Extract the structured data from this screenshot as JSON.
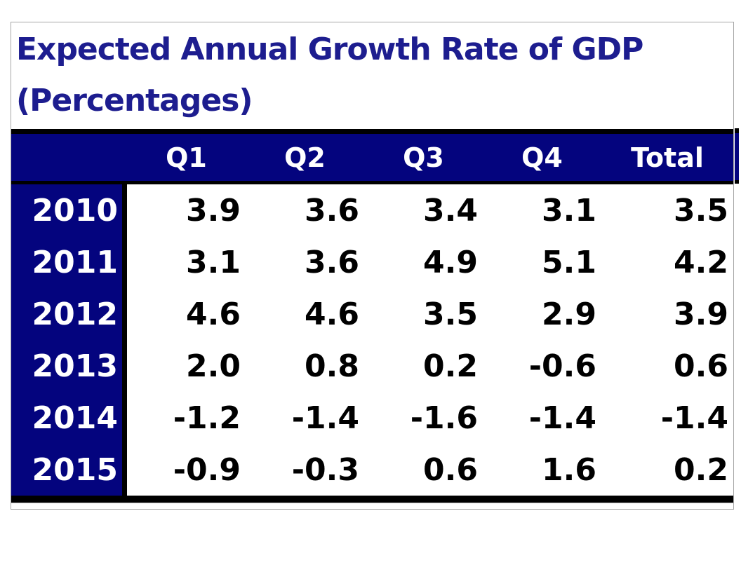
{
  "title": {
    "line1": "Expected Annual Growth Rate of GDP",
    "line2": "(Percentages)"
  },
  "chart_data": {
    "type": "table",
    "title": "Expected Annual Growth Rate of GDP (Percentages)",
    "columns": [
      "",
      "Q1",
      "Q2",
      "Q3",
      "Q4",
      "Total"
    ],
    "rows": [
      {
        "year": "2010",
        "values": [
          "3.9",
          "3.6",
          "3.4",
          "3.1",
          "3.5"
        ]
      },
      {
        "year": "2011",
        "values": [
          "3.1",
          "3.6",
          "4.9",
          "5.1",
          "4.2"
        ]
      },
      {
        "year": "2012",
        "values": [
          "4.6",
          "4.6",
          "3.5",
          "2.9",
          "3.9"
        ]
      },
      {
        "year": "2013",
        "values": [
          "2.0",
          "0.8",
          "0.2",
          "-0.6",
          "0.6"
        ]
      },
      {
        "year": "2014",
        "values": [
          "-1.2",
          "-1.4",
          "-1.6",
          "-1.4",
          "-1.4"
        ]
      },
      {
        "year": "2015",
        "values": [
          "-0.9",
          "-0.3",
          "0.6",
          "1.6",
          "0.2"
        ]
      }
    ],
    "layout_hints": {
      "header_alignment": "center",
      "value_alignment": "right",
      "units": "percent"
    }
  },
  "colors": {
    "navy_bg": "#04047e",
    "title_text": "#1d1d8f",
    "header_text": "#ffffff",
    "data_text": "#000000",
    "border_black": "#000000",
    "border_gray": "#a6a6a6",
    "background": "#ffffff"
  }
}
